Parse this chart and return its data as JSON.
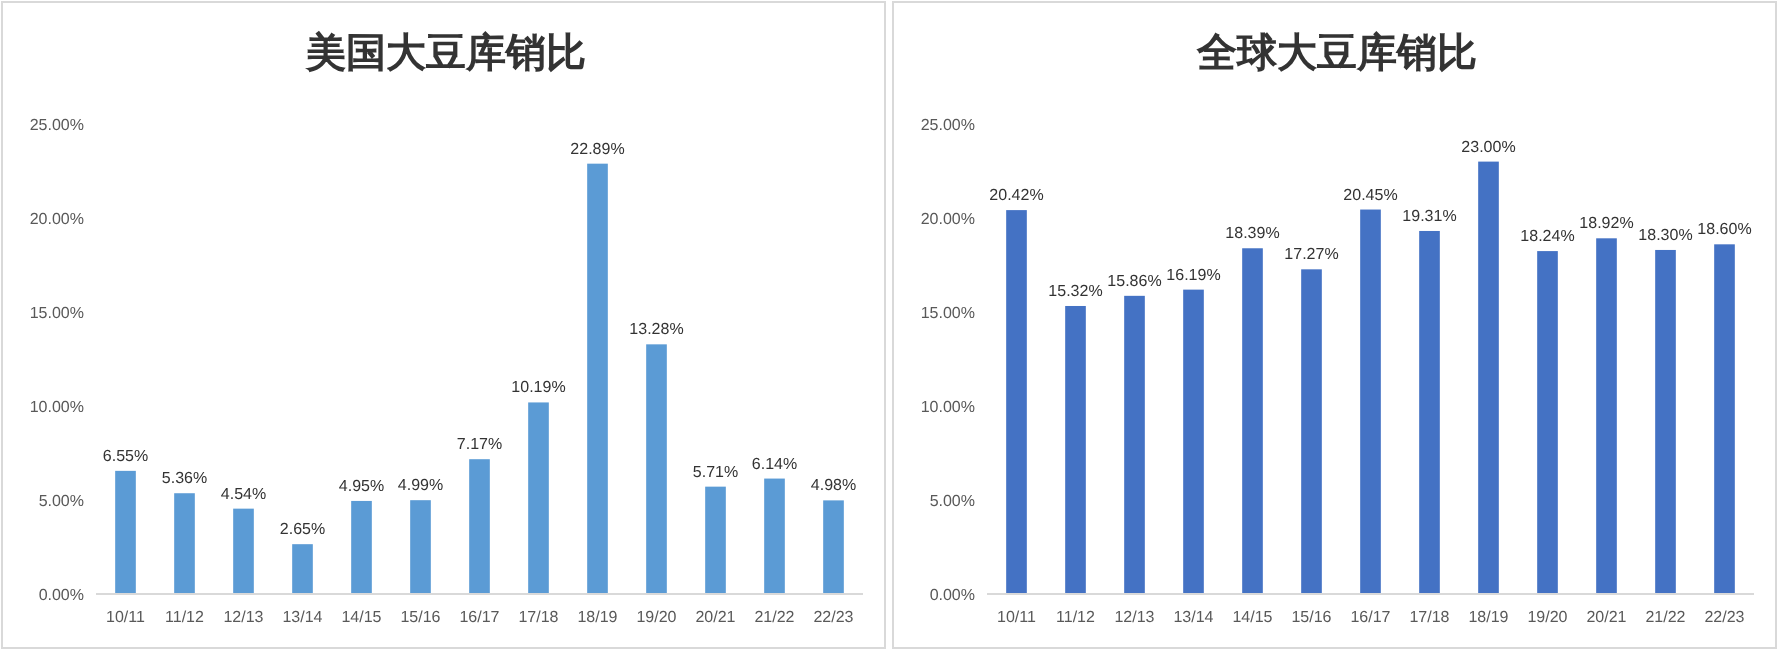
{
  "chart_data": [
    {
      "type": "bar",
      "title": "美国大豆库销比",
      "categories": [
        "10/11",
        "11/12",
        "12/13",
        "13/14",
        "14/15",
        "15/16",
        "16/17",
        "17/18",
        "18/19",
        "19/20",
        "20/21",
        "21/22",
        "22/23"
      ],
      "series": [
        {
          "color": "#5b9bd5",
          "values": [
            6.55,
            5.36,
            4.54,
            2.65,
            4.95,
            4.99,
            7.17,
            10.19,
            22.89,
            13.28,
            5.71,
            6.14,
            4.98
          ],
          "value_labels": [
            "6.55%",
            "5.36%",
            "4.54%",
            "2.65%",
            "4.95%",
            "4.99%",
            "7.17%",
            "10.19%",
            "22.89%",
            "13.28%",
            "5.71%",
            "6.14%",
            "4.98%"
          ]
        }
      ],
      "ylim": [
        0,
        25
      ],
      "yticks": [
        {
          "value": 0,
          "label": "0.00%"
        },
        {
          "value": 5,
          "label": "5.00%"
        },
        {
          "value": 10,
          "label": "10.00%"
        },
        {
          "value": 15,
          "label": "15.00%"
        },
        {
          "value": 20,
          "label": "20.00%"
        },
        {
          "value": 25,
          "label": "25.00%"
        }
      ]
    },
    {
      "type": "bar",
      "title": "全球大豆库销比",
      "categories": [
        "10/11",
        "11/12",
        "12/13",
        "13/14",
        "14/15",
        "15/16",
        "16/17",
        "17/18",
        "18/19",
        "19/20",
        "20/21",
        "21/22",
        "22/23"
      ],
      "series": [
        {
          "color": "#4472c4",
          "values": [
            20.42,
            15.32,
            15.86,
            16.19,
            18.39,
            17.27,
            20.45,
            19.31,
            23.0,
            18.24,
            18.92,
            18.3,
            18.6
          ],
          "value_labels": [
            "20.42%",
            "15.32%",
            "15.86%",
            "16.19%",
            "18.39%",
            "17.27%",
            "20.45%",
            "19.31%",
            "23.00%",
            "18.24%",
            "18.92%",
            "18.30%",
            "18.60%"
          ]
        }
      ],
      "ylim": [
        0,
        25
      ],
      "yticks": [
        {
          "value": 0,
          "label": "0.00%"
        },
        {
          "value": 5,
          "label": "5.00%"
        },
        {
          "value": 10,
          "label": "10.00%"
        },
        {
          "value": 15,
          "label": "15.00%"
        },
        {
          "value": 20,
          "label": "20.00%"
        },
        {
          "value": 25,
          "label": "25.00%"
        }
      ]
    }
  ]
}
